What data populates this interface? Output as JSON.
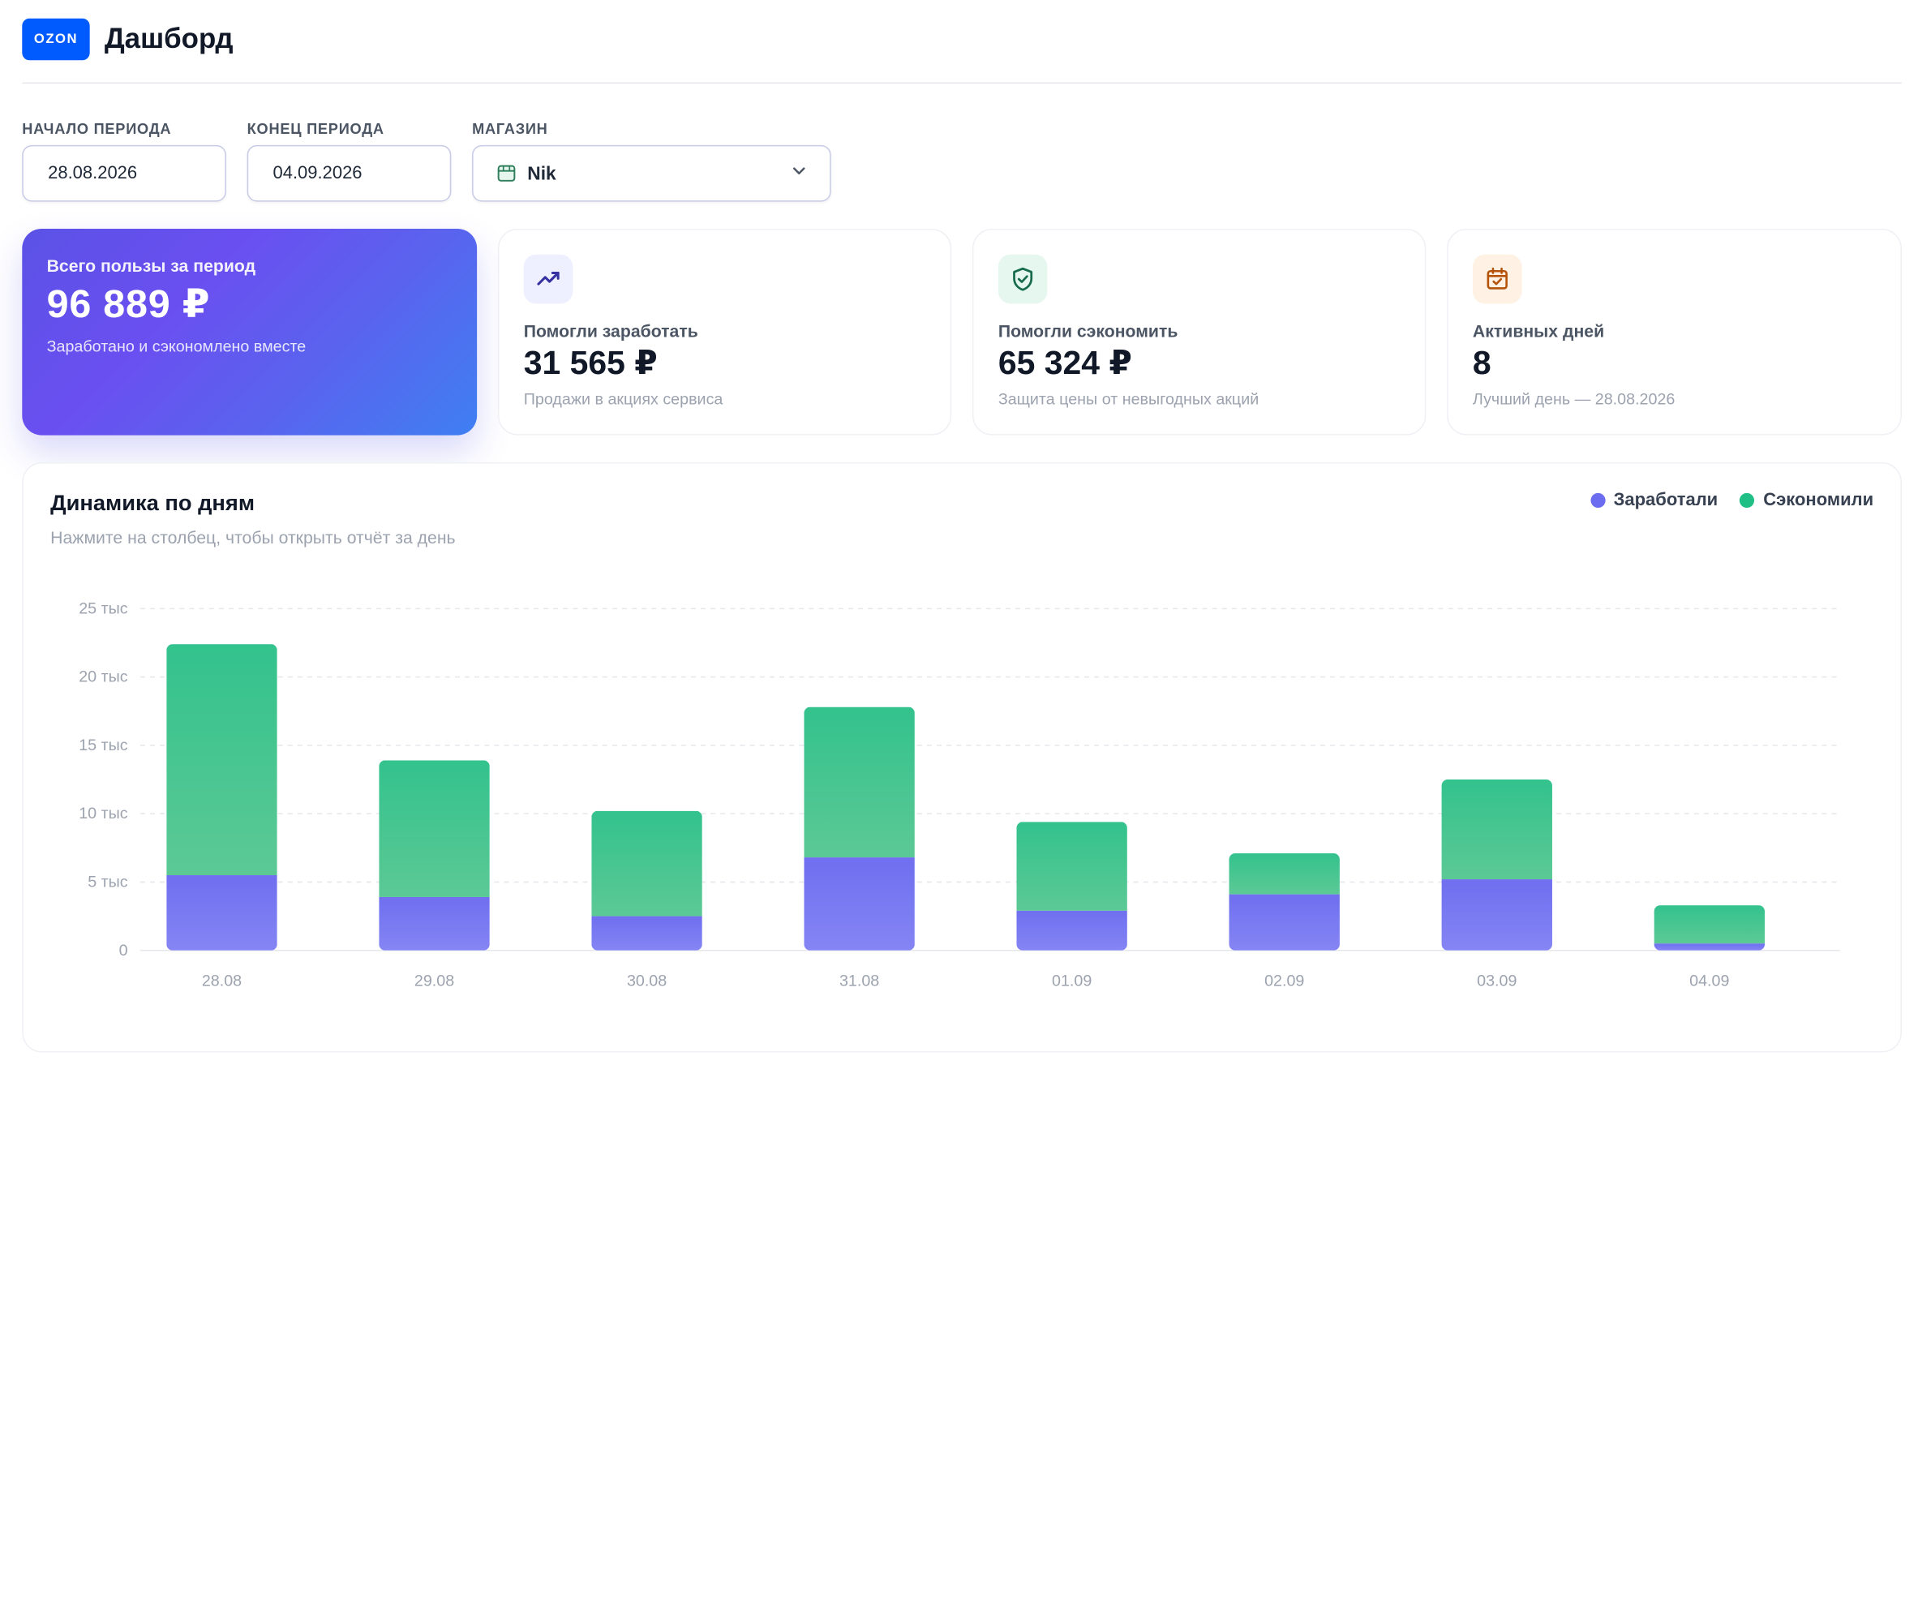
{
  "header": {
    "logo": "OZON",
    "title": "Дашборд"
  },
  "filters": {
    "start_label": "НАЧАЛО ПЕРИОДА",
    "start_value": "28.08.2026",
    "end_label": "КОНЕЦ ПЕРИОДА",
    "end_value": "04.09.2026",
    "store_label": "МАГАЗИН",
    "store_value": "Nik"
  },
  "cards": {
    "total": {
      "label": "Всего пользы за период",
      "value": "96 889 ₽",
      "sub": "Заработано и сэкономлено вместе"
    },
    "earned": {
      "label": "Помогли заработать",
      "value": "31 565 ₽",
      "sub": "Продажи в акциях сервиса"
    },
    "saved": {
      "label": "Помогли сэкономить",
      "value": "65 324 ₽",
      "sub": "Защита цены от невыгодных акций"
    },
    "active": {
      "label": "Активных дней",
      "value": "8",
      "sub": "Лучший день — 28.08.2026"
    }
  },
  "icons": {
    "trend": "trending-up-icon",
    "shield": "shield-check-icon",
    "calendar": "calendar-check-icon",
    "store": "store-icon",
    "chevron": "chevron-down-icon"
  },
  "colors": {
    "brand": "#005bff",
    "earned": "#6c6cf0",
    "saved": "#1fbf86",
    "earned_bar": "#7b7bf2",
    "saved_bar": "#3ec48f"
  },
  "chart": {
    "title": "Динамика по дням",
    "subtitle": "Нажмите на столбец, чтобы открыть отчёт за день",
    "legend_earned": "Заработали",
    "legend_saved": "Сэкономили"
  },
  "chart_data": {
    "type": "bar",
    "stacked": true,
    "categories": [
      "28.08",
      "29.08",
      "30.08",
      "31.08",
      "01.09",
      "02.09",
      "03.09",
      "04.09"
    ],
    "series": [
      {
        "name": "Заработали",
        "values": [
          5500,
          3900,
          2500,
          6800,
          2900,
          4100,
          5200,
          500
        ]
      },
      {
        "name": "Сэкономили",
        "values": [
          16900,
          10000,
          7700,
          11000,
          6500,
          3000,
          7300,
          2800
        ]
      }
    ],
    "ylim": [
      0,
      25000
    ],
    "yticks": [
      0,
      5000,
      10000,
      15000,
      20000,
      25000
    ],
    "ytick_labels": [
      "0",
      "5 тыс",
      "10 тыс",
      "15 тыс",
      "20 тыс",
      "25 тыс"
    ],
    "grid": true,
    "legend": "top-right"
  }
}
